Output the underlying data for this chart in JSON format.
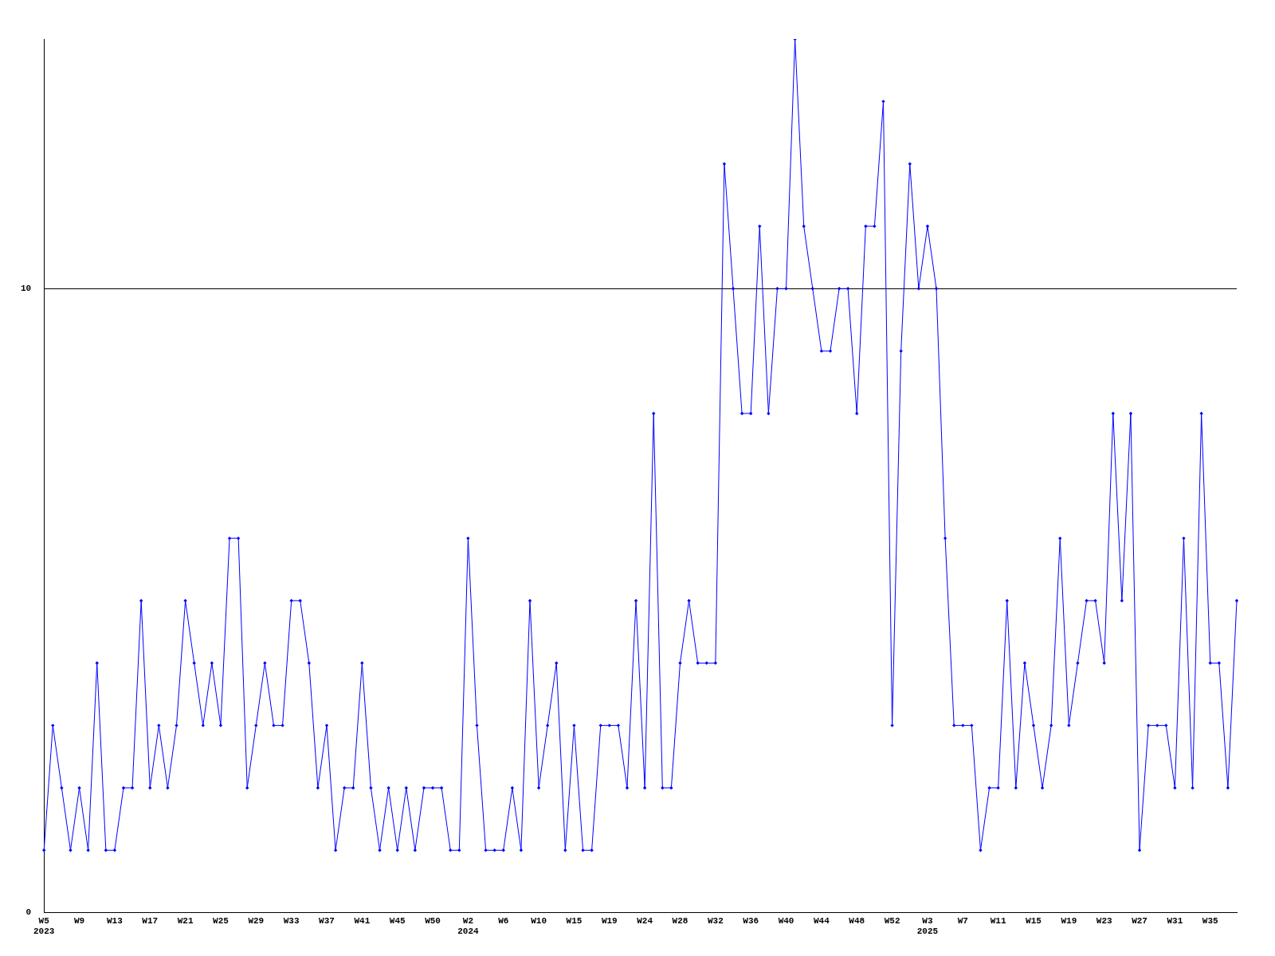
{
  "chart_data": {
    "type": "line",
    "categories": [
      "W5\n2023",
      null,
      null,
      null,
      "W9",
      null,
      null,
      null,
      "W13",
      null,
      null,
      null,
      "W17",
      null,
      null,
      null,
      "W21",
      null,
      null,
      null,
      "W25",
      null,
      null,
      null,
      "W29",
      null,
      null,
      null,
      "W33",
      null,
      null,
      null,
      "W37",
      null,
      null,
      null,
      "W41",
      null,
      null,
      null,
      "W45",
      null,
      null,
      null,
      "W50",
      null,
      null,
      null,
      "W2\n2024",
      null,
      null,
      null,
      "W6",
      null,
      null,
      null,
      "W10",
      null,
      null,
      null,
      "W15",
      null,
      null,
      null,
      "W19",
      null,
      null,
      null,
      "W24",
      null,
      null,
      null,
      "W28",
      null,
      null,
      null,
      "W32",
      null,
      null,
      null,
      "W36",
      null,
      null,
      null,
      "W40",
      null,
      null,
      null,
      "W44",
      null,
      null,
      null,
      "W48",
      null,
      null,
      null,
      "W52",
      null,
      null,
      null,
      "W3\n2025",
      null,
      null,
      null,
      "W7",
      null,
      null,
      null,
      "W11",
      null,
      null,
      null,
      "W15",
      null,
      null,
      null,
      "W19",
      null,
      null,
      null,
      "W23",
      null,
      null,
      null,
      "W27",
      null,
      null,
      null,
      "W31",
      null,
      null,
      null,
      "W35",
      null,
      null,
      null
    ],
    "series": [
      {
        "color": "#0000ff",
        "values": [
          1,
          3,
          2,
          1,
          2,
          1,
          4,
          1,
          1,
          2,
          2,
          5,
          2,
          3,
          2,
          3,
          5,
          4,
          3,
          4,
          3,
          6,
          6,
          2,
          3,
          4,
          3,
          3,
          5,
          5,
          4,
          2,
          3,
          1,
          2,
          2,
          4,
          2,
          1,
          2,
          1,
          2,
          1,
          2,
          2,
          2,
          1,
          1,
          6,
          3,
          1,
          1,
          1,
          2,
          1,
          5,
          2,
          3,
          4,
          1,
          3,
          1,
          1,
          3,
          3,
          3,
          2,
          5,
          2,
          8,
          2,
          2,
          4,
          5,
          4,
          4,
          4,
          12,
          10,
          8,
          8,
          11,
          8,
          10,
          10,
          14,
          11,
          10,
          9,
          9,
          10,
          10,
          8,
          11,
          11,
          13,
          3,
          9,
          12,
          10,
          11,
          10,
          6,
          3,
          3,
          3,
          1,
          2,
          2,
          5,
          2,
          4,
          3,
          2,
          3,
          6,
          3,
          4,
          5,
          5,
          4,
          8,
          5,
          8,
          1,
          3,
          3,
          3,
          2,
          6,
          2,
          8,
          4,
          4,
          2,
          5
        ]
      }
    ],
    "ylim": [
      0,
      14
    ],
    "yticks": [
      0,
      10
    ],
    "grid": "y",
    "marker": "diamond",
    "line_style": "solid"
  }
}
